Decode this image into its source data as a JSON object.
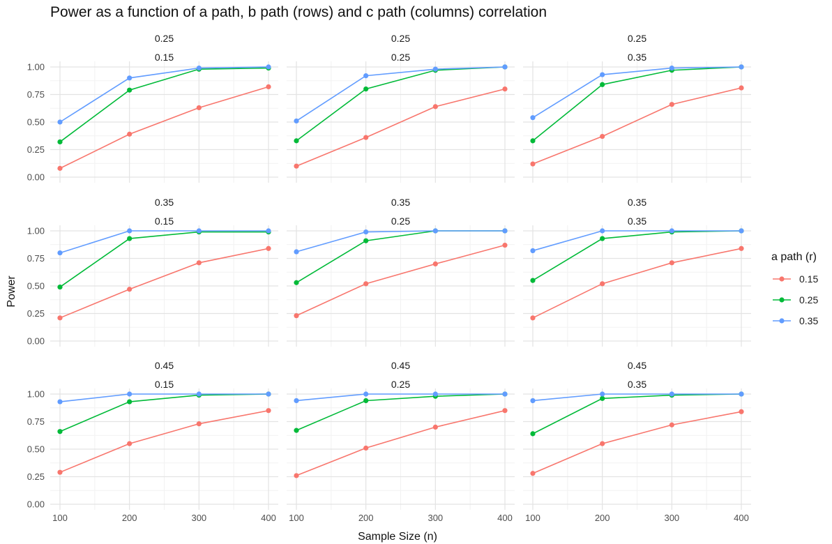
{
  "chart_data": {
    "type": "line",
    "title": "Power as a function of a path, b path (rows) and c path (columns) correlation",
    "xlabel": "Sample Size (n)",
    "ylabel": "Power",
    "x": [
      100,
      200,
      300,
      400
    ],
    "x_ticks": [
      "100",
      "200",
      "300",
      "400"
    ],
    "y_ticks": [
      "0.00",
      "0.25",
      "0.50",
      "0.75",
      "1.00"
    ],
    "xlim": [
      100,
      400
    ],
    "ylim": [
      0,
      1
    ],
    "grid": true,
    "legend": {
      "title": "a path (r)",
      "position": "right",
      "entries": [
        {
          "label": "0.15",
          "color": "#F8766D"
        },
        {
          "label": "0.25",
          "color": "#00BA38"
        },
        {
          "label": "0.35",
          "color": "#619CFF"
        }
      ]
    },
    "panels": [
      {
        "row": "0.25",
        "col": "0.15",
        "series": [
          {
            "a": "0.15",
            "values": [
              0.08,
              0.39,
              0.63,
              0.82
            ]
          },
          {
            "a": "0.25",
            "values": [
              0.32,
              0.79,
              0.98,
              0.99
            ]
          },
          {
            "a": "0.35",
            "values": [
              0.5,
              0.9,
              0.99,
              1.0
            ]
          }
        ]
      },
      {
        "row": "0.25",
        "col": "0.25",
        "series": [
          {
            "a": "0.15",
            "values": [
              0.1,
              0.36,
              0.64,
              0.8
            ]
          },
          {
            "a": "0.25",
            "values": [
              0.33,
              0.8,
              0.97,
              1.0
            ]
          },
          {
            "a": "0.35",
            "values": [
              0.51,
              0.92,
              0.98,
              1.0
            ]
          }
        ]
      },
      {
        "row": "0.25",
        "col": "0.35",
        "series": [
          {
            "a": "0.15",
            "values": [
              0.12,
              0.37,
              0.66,
              0.81
            ]
          },
          {
            "a": "0.25",
            "values": [
              0.33,
              0.84,
              0.97,
              1.0
            ]
          },
          {
            "a": "0.35",
            "values": [
              0.54,
              0.93,
              0.99,
              1.0
            ]
          }
        ]
      },
      {
        "row": "0.35",
        "col": "0.15",
        "series": [
          {
            "a": "0.15",
            "values": [
              0.21,
              0.47,
              0.71,
              0.84
            ]
          },
          {
            "a": "0.25",
            "values": [
              0.49,
              0.93,
              0.99,
              0.99
            ]
          },
          {
            "a": "0.35",
            "values": [
              0.8,
              1.0,
              1.0,
              1.0
            ]
          }
        ]
      },
      {
        "row": "0.35",
        "col": "0.25",
        "series": [
          {
            "a": "0.15",
            "values": [
              0.23,
              0.52,
              0.7,
              0.87
            ]
          },
          {
            "a": "0.25",
            "values": [
              0.53,
              0.91,
              1.0,
              1.0
            ]
          },
          {
            "a": "0.35",
            "values": [
              0.81,
              0.99,
              1.0,
              1.0
            ]
          }
        ]
      },
      {
        "row": "0.35",
        "col": "0.35",
        "series": [
          {
            "a": "0.15",
            "values": [
              0.21,
              0.52,
              0.71,
              0.84
            ]
          },
          {
            "a": "0.25",
            "values": [
              0.55,
              0.93,
              0.99,
              1.0
            ]
          },
          {
            "a": "0.35",
            "values": [
              0.82,
              1.0,
              1.0,
              1.0
            ]
          }
        ]
      },
      {
        "row": "0.45",
        "col": "0.15",
        "series": [
          {
            "a": "0.15",
            "values": [
              0.29,
              0.55,
              0.73,
              0.85
            ]
          },
          {
            "a": "0.25",
            "values": [
              0.66,
              0.93,
              0.99,
              1.0
            ]
          },
          {
            "a": "0.35",
            "values": [
              0.93,
              1.0,
              1.0,
              1.0
            ]
          }
        ]
      },
      {
        "row": "0.45",
        "col": "0.25",
        "series": [
          {
            "a": "0.15",
            "values": [
              0.26,
              0.51,
              0.7,
              0.85
            ]
          },
          {
            "a": "0.25",
            "values": [
              0.67,
              0.94,
              0.98,
              1.0
            ]
          },
          {
            "a": "0.35",
            "values": [
              0.94,
              1.0,
              1.0,
              1.0
            ]
          }
        ]
      },
      {
        "row": "0.45",
        "col": "0.35",
        "series": [
          {
            "a": "0.15",
            "values": [
              0.28,
              0.55,
              0.72,
              0.84
            ]
          },
          {
            "a": "0.25",
            "values": [
              0.64,
              0.96,
              0.99,
              1.0
            ]
          },
          {
            "a": "0.35",
            "values": [
              0.94,
              1.0,
              1.0,
              1.0
            ]
          }
        ]
      }
    ]
  }
}
